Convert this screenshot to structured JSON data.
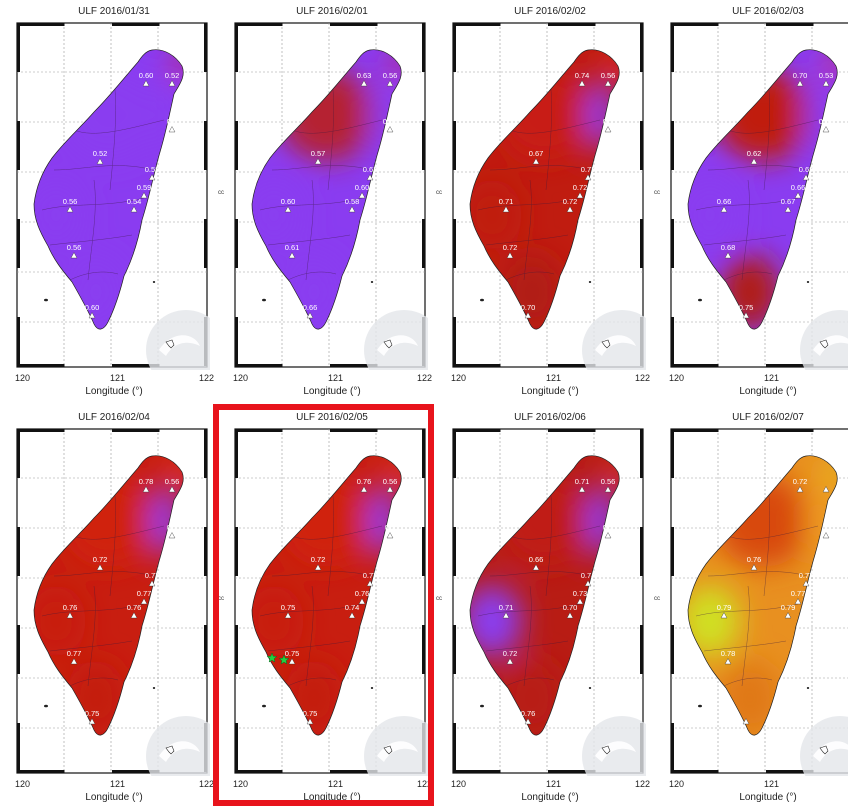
{
  "figure": {
    "axis_label": "Longitude (°)",
    "ticks": [
      "120",
      "121",
      "122"
    ],
    "side_label": "cc",
    "highlighted_index": 5
  },
  "panels": [
    {
      "title": "ULF 2016/01/31",
      "colors": {
        "bg": "#8a3cf0",
        "a": "#8a3cf0",
        "b": "#8a3cf0",
        "c": "#8a3cf0",
        "d": "#8a3cf0"
      },
      "east": "#d01a10",
      "stations": [
        [
          "0.60",
          0
        ],
        [
          "0.52",
          1
        ],
        [
          "0.6",
          2
        ],
        [
          "0.52",
          3
        ],
        [
          "0.58",
          4
        ],
        [
          "0.59",
          5
        ],
        [
          "0.56",
          6
        ],
        [
          "0.54",
          7
        ],
        [
          "0.56",
          8
        ],
        [
          "0.60",
          9
        ]
      ]
    },
    {
      "title": "ULF 2016/02/01",
      "colors": {
        "bg": "#8a3cf0",
        "a": "#b52030",
        "b": "#8a3cf0",
        "c": "#8a3cf0",
        "d": "#8a3cf0"
      },
      "east": "#d01a10",
      "stations": [
        [
          "0.63",
          0
        ],
        [
          "0.56",
          1
        ],
        [
          "0.64",
          2
        ],
        [
          "0.57",
          3
        ],
        [
          "0.62",
          4
        ],
        [
          "0.60",
          5
        ],
        [
          "0.60",
          6
        ],
        [
          "0.58",
          7
        ],
        [
          "0.61",
          8
        ],
        [
          "0.66",
          9
        ]
      ]
    },
    {
      "title": "ULF 2016/02/02",
      "colors": {
        "bg": "#c01c10",
        "a": "#c81e12",
        "b": "#8a3cf0",
        "c": "#c01c10",
        "d": "#b01a18"
      },
      "east": "#e83010",
      "stations": [
        [
          "0.74",
          0
        ],
        [
          "0.56",
          1
        ],
        [
          "0.5",
          2
        ],
        [
          "0.67",
          3
        ],
        [
          "0.73",
          4
        ],
        [
          "0.72",
          5
        ],
        [
          "0.71",
          6
        ],
        [
          "0.72",
          7
        ],
        [
          "0.72",
          8
        ],
        [
          "0.70",
          9
        ]
      ]
    },
    {
      "title": "ULF 2016/02/03",
      "colors": {
        "bg": "#8a3cf0",
        "a": "#c01c10",
        "b": "#8a3cf0",
        "c": "#8a3cf0",
        "d": "#b01a18"
      },
      "east": "#e02810",
      "stations": [
        [
          "0.70",
          0
        ],
        [
          "0.53",
          1
        ],
        [
          "0.54",
          2
        ],
        [
          "0.62",
          3
        ],
        [
          "0.68",
          4
        ],
        [
          "0.66",
          5
        ],
        [
          "0.66",
          6
        ],
        [
          "0.67",
          7
        ],
        [
          "0.68",
          8
        ],
        [
          "0.75",
          9
        ]
      ]
    },
    {
      "title": "ULF 2016/02/04",
      "colors": {
        "bg": "#c81e10",
        "a": "#d02410",
        "b": "#8a3cf0",
        "c": "#c81e10",
        "d": "#c41c10"
      },
      "east": "#e84010",
      "stations": [
        [
          "0.78",
          0
        ],
        [
          "0.56",
          1
        ],
        [
          "0.7",
          2
        ],
        [
          "0.72",
          3
        ],
        [
          "0.77",
          4
        ],
        [
          "0.77",
          5
        ],
        [
          "0.76",
          6
        ],
        [
          "0.76",
          7
        ],
        [
          "0.77",
          8
        ],
        [
          "0.75",
          9
        ]
      ]
    },
    {
      "title": "ULF 2016/02/05",
      "colors": {
        "bg": "#c81e10",
        "a": "#d02410",
        "b": "#8a3cf0",
        "c": "#c81e10",
        "d": "#c41c10"
      },
      "east": "#e84010",
      "stations": [
        [
          "0.76",
          0
        ],
        [
          "0.56",
          1
        ],
        [
          "0.7",
          2
        ],
        [
          "0.72",
          3
        ],
        [
          "0.77",
          4
        ],
        [
          "0.76",
          5
        ],
        [
          "0.75",
          6
        ],
        [
          "0.74",
          7
        ],
        [
          "0.75",
          8
        ],
        [
          "0.75",
          9
        ]
      ],
      "star": true
    },
    {
      "title": "ULF 2016/02/06",
      "colors": {
        "bg": "#b81c14",
        "a": "#c01c12",
        "b": "#8a3cf0",
        "c": "#8a3cf0",
        "d": "#b81c14"
      },
      "east": "#e84010",
      "stations": [
        [
          "0.71",
          0
        ],
        [
          "0.56",
          1
        ],
        [
          "0.7",
          2
        ],
        [
          "0.66",
          3
        ],
        [
          "0.74",
          4
        ],
        [
          "0.73",
          5
        ],
        [
          "0.71",
          6
        ],
        [
          "0.70",
          7
        ],
        [
          "0.72",
          8
        ],
        [
          "0.76",
          9
        ]
      ]
    },
    {
      "title": "ULF 2016/02/07",
      "colors": {
        "bg": "#e89020",
        "a": "#d84a10",
        "b": "#f0a020",
        "c": "#d0e020",
        "d": "#e07818"
      },
      "east": "#e8d020",
      "stations": [
        [
          "0.72",
          0
        ],
        [
          "",
          1
        ],
        [
          "",
          2
        ],
        [
          "0.76",
          3
        ],
        [
          "0.77",
          4
        ],
        [
          "0.77",
          5
        ],
        [
          "0.79",
          6
        ],
        [
          "0.79",
          7
        ],
        [
          "0.78",
          8
        ],
        [
          "",
          9
        ]
      ]
    }
  ]
}
